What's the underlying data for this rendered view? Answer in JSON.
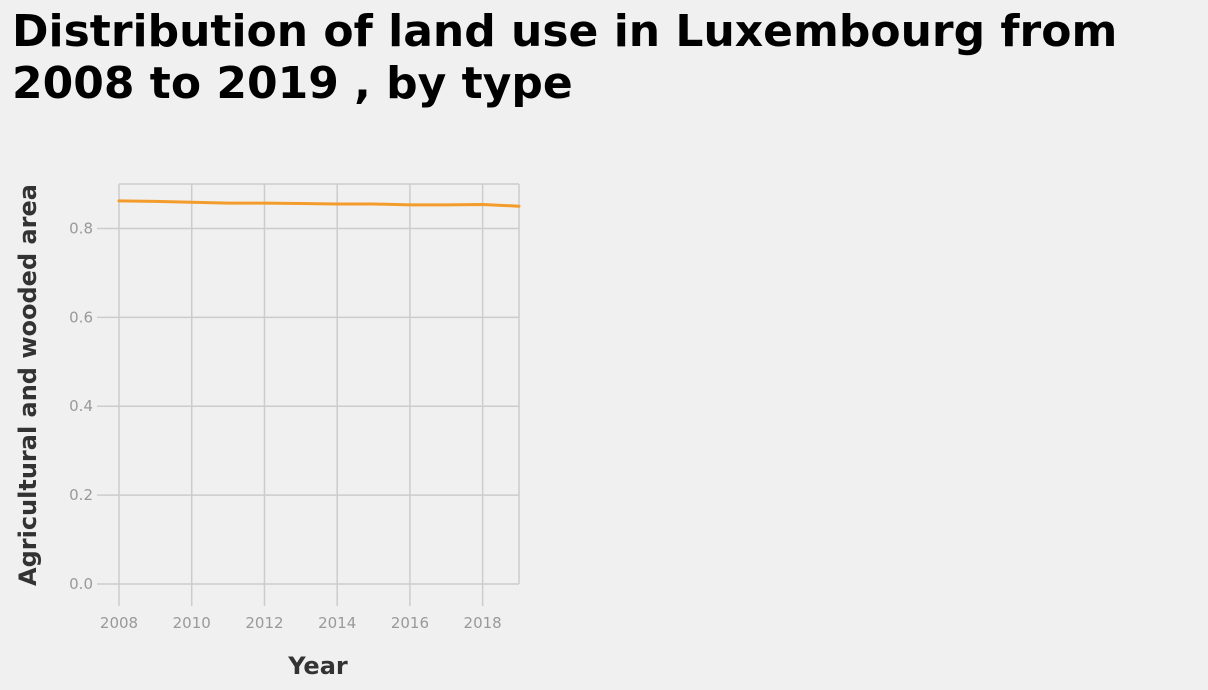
{
  "chart_data": {
    "type": "line",
    "title": "Distribution of land use in Luxembourg from 2008 to 2019 , by type",
    "xlabel": "Year",
    "ylabel": "Agricultural and wooded area",
    "xlim": [
      2008,
      2019
    ],
    "ylim": [
      0,
      0.9
    ],
    "x_ticks": [
      2008,
      2010,
      2012,
      2014,
      2016,
      2018
    ],
    "x_tick_labels": [
      "2008",
      "2010",
      "2012",
      "2014",
      "2016",
      "2018"
    ],
    "y_ticks": [
      0.0,
      0.2,
      0.4,
      0.6,
      0.8
    ],
    "y_tick_labels": [
      "0.0",
      "0.2",
      "0.4",
      "0.6",
      "0.8"
    ],
    "grid": true,
    "series": [
      {
        "color": "#f39c2b",
        "x": [
          2008,
          2009,
          2010,
          2011,
          2012,
          2013,
          2014,
          2015,
          2016,
          2017,
          2018,
          2019
        ],
        "values": [
          0.862,
          0.861,
          0.859,
          0.857,
          0.857,
          0.856,
          0.855,
          0.855,
          0.853,
          0.853,
          0.854,
          0.85
        ]
      }
    ]
  }
}
